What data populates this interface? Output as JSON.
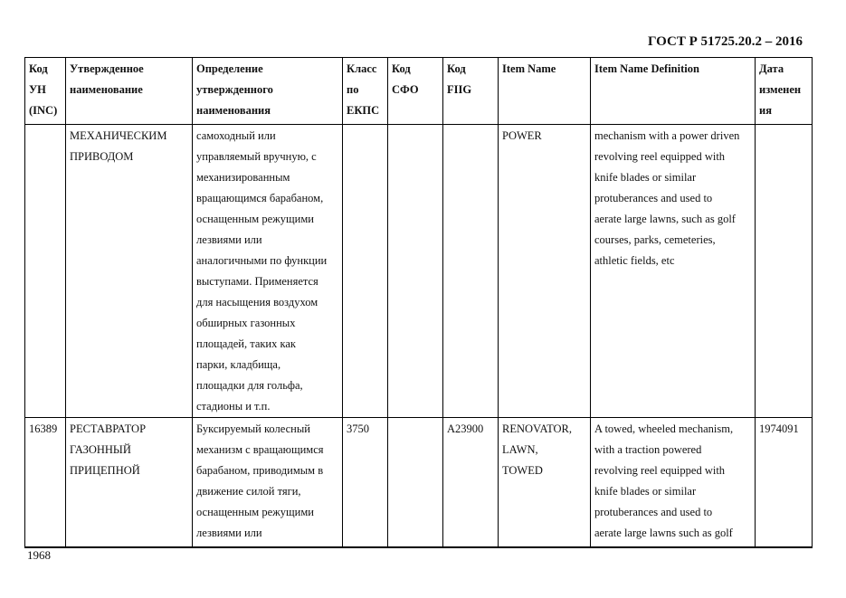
{
  "header": {
    "standard": "ГОСТ Р 51725.20.2 – 2016"
  },
  "footer": {
    "page_number": "1968"
  },
  "table": {
    "columns": [
      "Код\nУН\n(INC)",
      "Утвержденное\nнаименование",
      "Определение\nутвержденного\nнаименования",
      "Класс\nпо\nЕКПС",
      "Код\nСФО",
      "Код\nFIIG",
      "Item Name",
      "Item Name Definition",
      "Дата\nизменен\nия"
    ],
    "rows": [
      [
        "",
        "МЕХАНИЧЕСКИМ\nПРИВОДОМ",
        "самоходный или\nуправляемый вручную, с\nмеханизированным\nвращающимся барабаном,\nоснащенным режущими\nлезвиями или\nаналогичными по функции\nвыступами. Применяется\nдля насыщения воздухом\nобширных газонных\nплощадей, таких как\nпарки, кладбища,\nплощадки для гольфа,\nстадионы и т.п.",
        "",
        "",
        "",
        "POWER",
        "mechanism with a power driven\nrevolving reel equipped with\nknife blades or similar\nprotuberances and used to\naerate large lawns, such as golf\ncourses, parks, cemeteries,\nathletic fields, etc",
        ""
      ],
      [
        "16389",
        "РЕСТАВРАТОР\nГАЗОННЫЙ\nПРИЦЕПНОЙ",
        "Буксируемый колесный\nмеханизм с вращающимся\nбарабаном, приводимым в\nдвижение силой тяги,\nоснащенным режущими\nлезвиями или",
        "3750",
        "",
        "A23900",
        "RENOVATOR,\nLAWN,\nTOWED",
        "A towed, wheeled mechanism,\nwith a traction powered\nrevolving reel equipped with\nknife blades or similar\nprotuberances and used to\naerate large lawns such as golf",
        "1974091"
      ]
    ]
  }
}
